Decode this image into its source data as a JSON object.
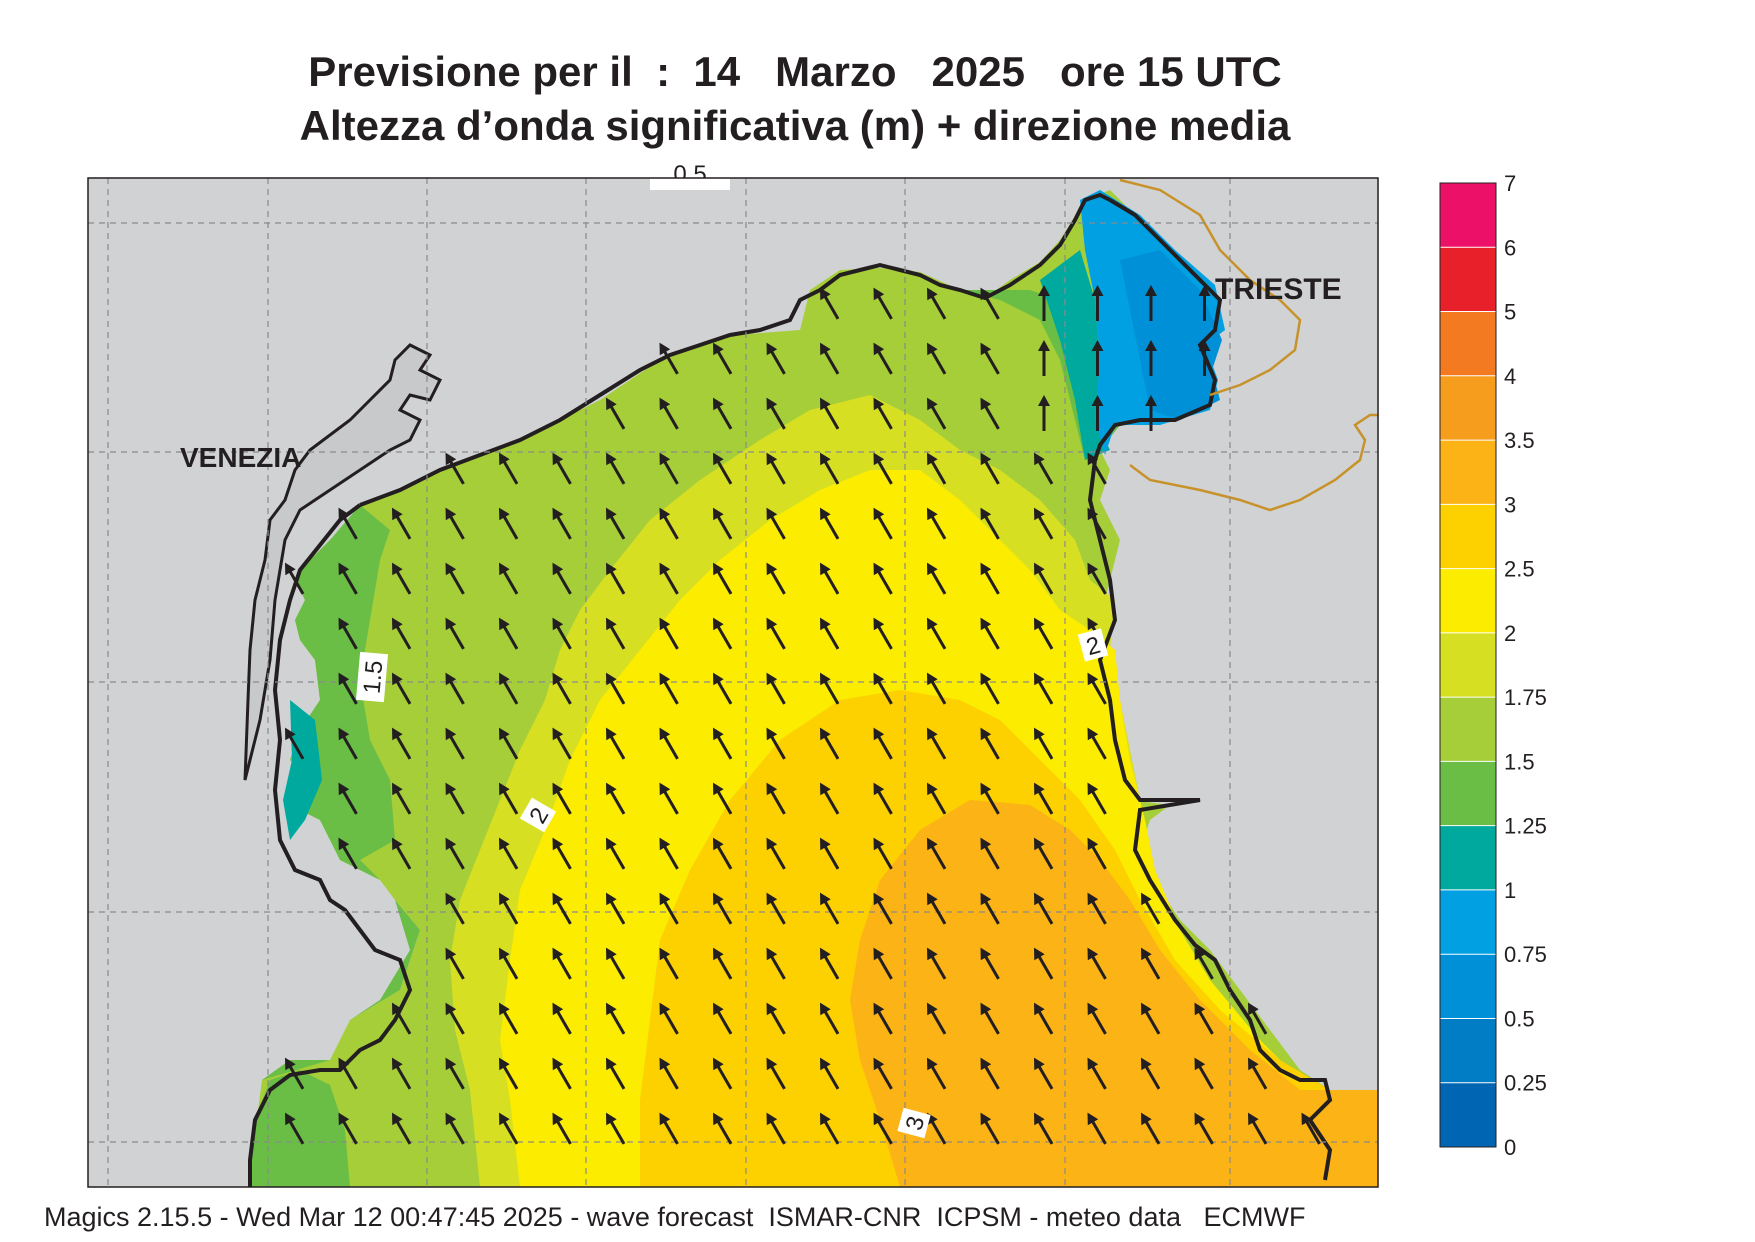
{
  "title": {
    "line1": "Previsione per il  :  14   Marzo   2025   ore 15 UTC",
    "line2": "Altezza d’onda significativa (m) + direzione media"
  },
  "labels": {
    "venezia": "VENEZIA",
    "trieste": "TRIESTE",
    "contour_top": "0.5",
    "contour_1_5": "1.5",
    "contour_2_west": "2",
    "contour_2_east": "2",
    "contour_3": "3"
  },
  "legend": {
    "ticks": [
      "7",
      "6",
      "5",
      "4",
      "3.5",
      "3",
      "2.5",
      "2",
      "1.75",
      "1.5",
      "1.25",
      "1",
      "0.75",
      "0.5",
      "0.25",
      "0"
    ],
    "colors": [
      "#ec1068",
      "#e8202a",
      "#f47a22",
      "#f79d1e",
      "#fbb316",
      "#fdd000",
      "#fbec00",
      "#d7df23",
      "#a6ce39",
      "#6abd45",
      "#00a99d",
      "#00a0e3",
      "#0090d8",
      "#007dc5",
      "#0066b3"
    ]
  },
  "field_colors": {
    "land": "#d1d2d4",
    "sea_1": "#0090d8",
    "sea_1_25": "#00a99d",
    "sea_1_5": "#6abd45",
    "sea_1_75": "#a6ce39",
    "sea_2": "#d7df23",
    "sea_2_5": "#fbec00",
    "sea_3": "#fdd000",
    "sea_3_5": "#fbb316",
    "border": "#c8922a",
    "coast": "#231f20"
  },
  "arrow_direction": "north-west",
  "footer": "Magics 2.15.5 - Wed Mar 12 00:47:45 2025 - wave forecast  ISMAR-CNR  ICPSM - meteo data   ECMWF"
}
